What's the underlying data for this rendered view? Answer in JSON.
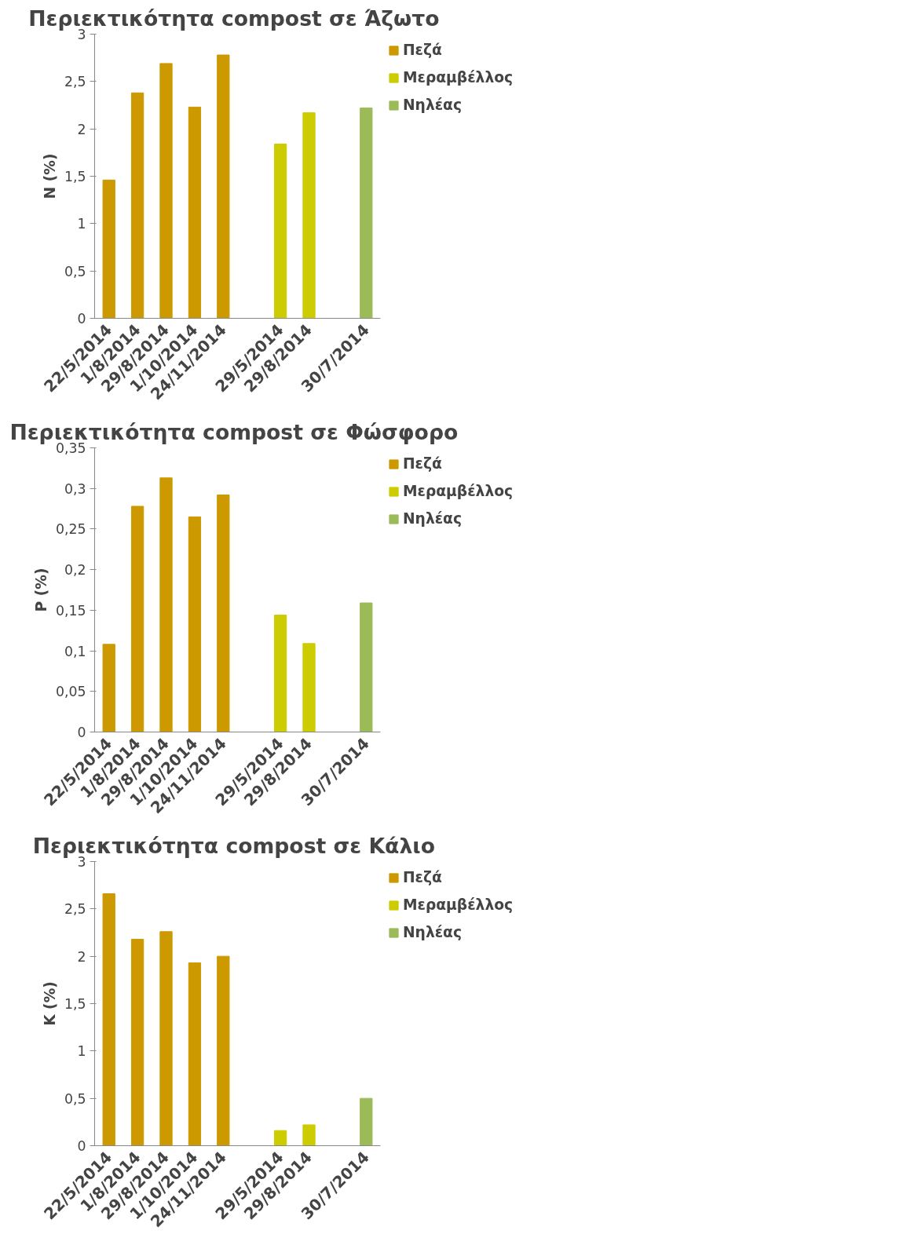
{
  "chart_data": [
    {
      "type": "bar",
      "title": "Περιεκτικότητα  compost σε Άζωτο",
      "ylabel": "N (%)",
      "categories": [
        "22/5/2014",
        "1/8/2014",
        "29/8/2014",
        "1/10/2014",
        "24/11/2014",
        null,
        "29/5/2014",
        "29/8/2014",
        null,
        "30/7/2014"
      ],
      "series": [
        {
          "name": "Πεζά",
          "color": "#cc9900",
          "values": [
            1.46,
            2.38,
            2.69,
            2.23,
            2.78,
            null,
            null,
            null,
            null,
            null
          ]
        },
        {
          "name": "Μεραμβέλλος",
          "color": "#cccc00",
          "values": [
            null,
            null,
            null,
            null,
            null,
            null,
            1.84,
            2.17,
            null,
            null
          ]
        },
        {
          "name": "Νηλέας",
          "color": "#9bbb59",
          "values": [
            null,
            null,
            null,
            null,
            null,
            null,
            null,
            null,
            null,
            2.22
          ]
        }
      ],
      "ylim": [
        0,
        3
      ],
      "yticks": [
        0,
        {
          "value": 0.5,
          "label": "0,5"
        },
        1,
        {
          "value": 1.5,
          "label": "1,5"
        },
        2,
        {
          "value": 2.5,
          "label": "2,5"
        },
        3
      ],
      "grid": false,
      "legend": "right"
    },
    {
      "type": "bar",
      "title": "Περιεκτικότητα  compost σε Φώσφορο",
      "ylabel": "P (%)",
      "categories": [
        "22/5/2014",
        "1/8/2014",
        "29/8/2014",
        "1/10/2014",
        "24/11/2014",
        null,
        "29/5/2014",
        "29/8/2014",
        null,
        "30/7/2014"
      ],
      "series": [
        {
          "name": "Πεζά",
          "color": "#cc9900",
          "values": [
            0.108,
            0.278,
            0.313,
            0.265,
            0.292,
            null,
            null,
            null,
            null,
            null
          ]
        },
        {
          "name": "Μεραμβέλλος",
          "color": "#cccc00",
          "values": [
            null,
            null,
            null,
            null,
            null,
            null,
            0.144,
            0.109,
            null,
            null
          ]
        },
        {
          "name": "Νηλέας",
          "color": "#9bbb59",
          "values": [
            null,
            null,
            null,
            null,
            null,
            null,
            null,
            null,
            null,
            0.159
          ]
        }
      ],
      "ylim": [
        0,
        0.35
      ],
      "yticks": [
        0,
        {
          "value": 0.05,
          "label": "0,05"
        },
        {
          "value": 0.1,
          "label": "0,1"
        },
        {
          "value": 0.15,
          "label": "0,15"
        },
        {
          "value": 0.2,
          "label": "0,2"
        },
        {
          "value": 0.25,
          "label": "0,25"
        },
        {
          "value": 0.3,
          "label": "0,3"
        },
        {
          "value": 0.35,
          "label": "0,35"
        }
      ],
      "grid": false,
      "legend": "right"
    },
    {
      "type": "bar",
      "title": "Περιεκτικότητα  compost σε Κάλιο",
      "ylabel": "K (%)",
      "categories": [
        "22/5/2014",
        "1/8/2014",
        "29/8/2014",
        "1/10/2014",
        "24/11/2014",
        null,
        "29/5/2014",
        "29/8/2014",
        null,
        "30/7/2014"
      ],
      "series": [
        {
          "name": "Πεζά",
          "color": "#cc9900",
          "values": [
            2.66,
            2.18,
            2.26,
            1.93,
            2.0,
            null,
            null,
            null,
            null,
            null
          ]
        },
        {
          "name": "Μεραμβέλλος",
          "color": "#cccc00",
          "values": [
            null,
            null,
            null,
            null,
            null,
            null,
            0.16,
            0.22,
            null,
            null
          ]
        },
        {
          "name": "Νηλέας",
          "color": "#9bbb59",
          "values": [
            null,
            null,
            null,
            null,
            null,
            null,
            null,
            null,
            null,
            0.5
          ]
        }
      ],
      "ylim": [
        0,
        3
      ],
      "yticks": [
        0,
        {
          "value": 0.5,
          "label": "0,5"
        },
        1,
        {
          "value": 1.5,
          "label": "1,5"
        },
        2,
        {
          "value": 2.5,
          "label": "2,5"
        },
        3
      ],
      "grid": false,
      "legend": "right"
    }
  ]
}
